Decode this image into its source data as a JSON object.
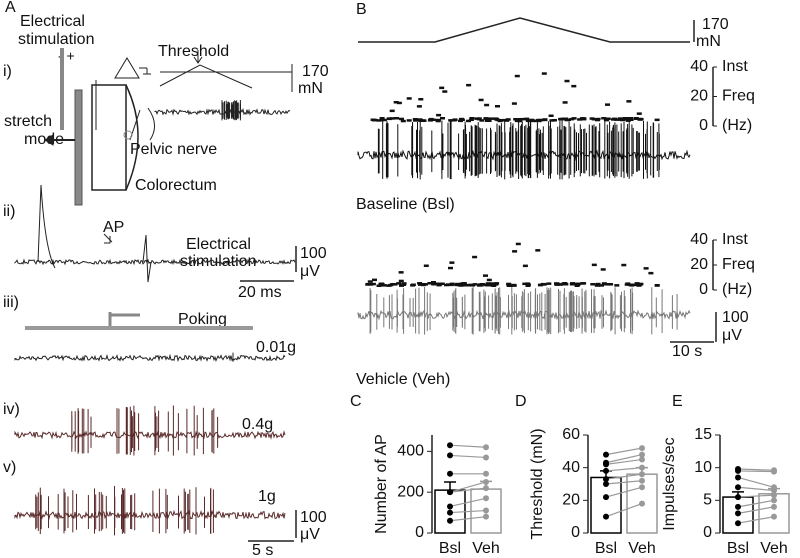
{
  "panel_a": {
    "label": "A",
    "i": {
      "label": "i)",
      "stim": [
        "Electrical",
        "stimulation"
      ],
      "polarity": "- +",
      "threshold": "Threshold",
      "force_scale": "170",
      "force_unit": "mN",
      "stretch": [
        "stretch",
        "mode"
      ],
      "nerve": "Pelvic nerve",
      "organ": "Colorectum"
    },
    "ii": {
      "label": "ii)",
      "ap": "AP",
      "stim": [
        "Electrical",
        "stimulation"
      ],
      "v_scale": "100",
      "v_unit": "μV",
      "t_scale": "20 ms"
    },
    "iii": {
      "label": "iii)",
      "poking": "Poking",
      "force": "0.01g"
    },
    "iv": {
      "label": "iv)",
      "force": "0.4g"
    },
    "v": {
      "label": "v)",
      "force": "1g",
      "v_scale": "100",
      "v_unit": "μV",
      "t_scale": "5 s"
    }
  },
  "panel_b": {
    "label": "B",
    "force_scale": "170",
    "force_unit": "mN",
    "freq_lim": [
      0,
      40
    ],
    "freq_ticks": [
      0,
      20,
      40
    ],
    "freq_label": [
      "Inst",
      "Freq",
      "(Hz)"
    ],
    "baseline": "Baseline (Bsl)",
    "vehicle": "Vehicle (Veh)",
    "v_scale": "100",
    "v_unit": "μV",
    "t_scale": "10 s"
  },
  "chart_data": [
    {
      "type": "bar",
      "label": "C",
      "ylabel": "Number of AP",
      "categories": [
        "Bsl",
        "Veh"
      ],
      "colors": [
        "#000000",
        "#999999"
      ],
      "values": [
        210,
        215
      ],
      "errors": [
        40,
        38
      ],
      "points": [
        [
          430,
          380,
          290,
          200,
          200,
          130,
          100,
          60
        ],
        [
          420,
          370,
          290,
          250,
          220,
          170,
          110,
          80
        ]
      ],
      "ylim": [
        0,
        480
      ],
      "yticks": [
        0,
        200,
        400
      ]
    },
    {
      "type": "bar",
      "label": "D",
      "ylabel": "Threshold (mN)",
      "categories": [
        "Bsl",
        "Veh"
      ],
      "colors": [
        "#000000",
        "#999999"
      ],
      "values": [
        34,
        36
      ],
      "errors": [
        4,
        4
      ],
      "points": [
        [
          48,
          43,
          42,
          38,
          33,
          30,
          22,
          10
        ],
        [
          52,
          48,
          45,
          40,
          36,
          32,
          28,
          18
        ]
      ],
      "ylim": [
        0,
        60
      ],
      "yticks": [
        0,
        20,
        40,
        60
      ]
    },
    {
      "type": "bar",
      "label": "E",
      "ylabel": "Impulses/sec",
      "categories": [
        "Bsl",
        "Veh"
      ],
      "colors": [
        "#000000",
        "#999999"
      ],
      "values": [
        5.5,
        6
      ],
      "errors": [
        0.8,
        0.8
      ],
      "points": [
        [
          9.8,
          9.5,
          8.5,
          7,
          5.5,
          4,
          3,
          1.5
        ],
        [
          9.6,
          9.4,
          7,
          6.5,
          5.8,
          5,
          4,
          2.5
        ]
      ],
      "ylim": [
        0,
        15
      ],
      "yticks": [
        0,
        5,
        10,
        15
      ]
    }
  ]
}
